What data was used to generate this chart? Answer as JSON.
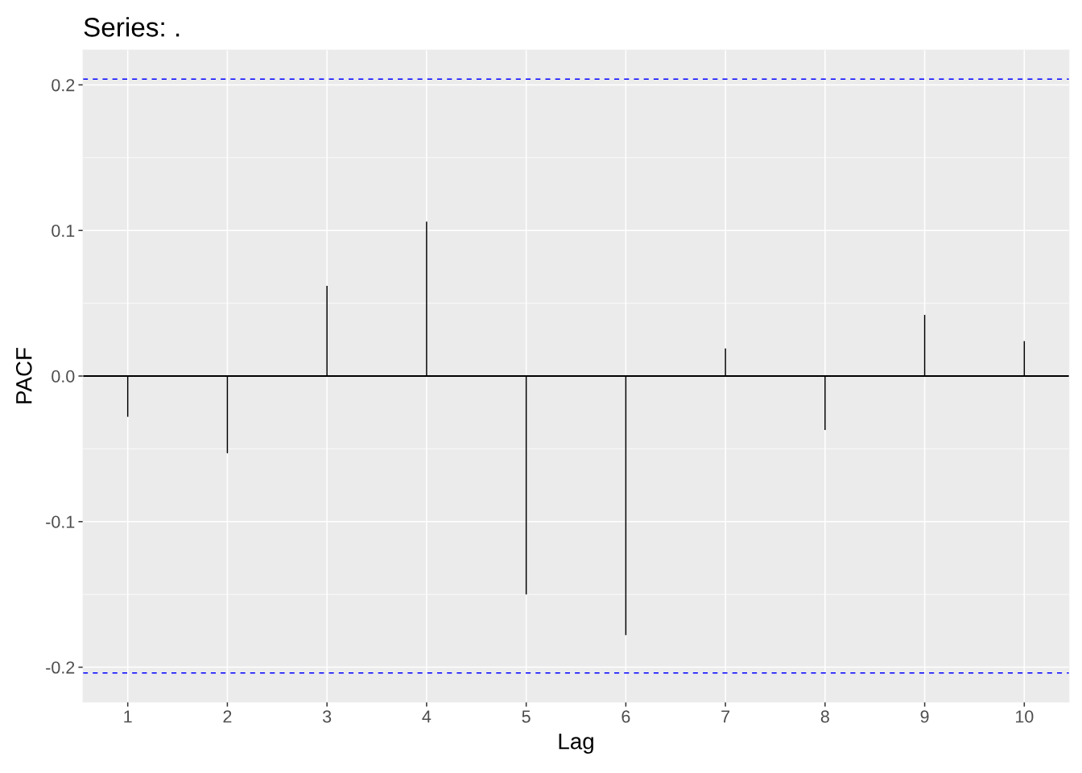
{
  "chart_data": {
    "type": "bar",
    "title": "Series: .",
    "xlabel": "Lag",
    "ylabel": "PACF",
    "x": [
      1,
      2,
      3,
      4,
      5,
      6,
      7,
      8,
      9,
      10
    ],
    "values": [
      -0.028,
      -0.053,
      0.062,
      0.106,
      -0.15,
      -0.178,
      0.019,
      -0.037,
      0.042,
      0.024
    ],
    "color": "#000000",
    "xlim": [
      0.55,
      10.45
    ],
    "xticks": [
      1,
      2,
      3,
      4,
      5,
      6,
      7,
      8,
      9,
      10
    ],
    "ylim": [
      -0.224,
      0.224
    ],
    "yticks": [
      -0.2,
      -0.1,
      {
        "value": 0,
        "label": "0.0"
      },
      0.1,
      0.2
    ],
    "ref_lines": [
      {
        "axis": "y",
        "value": 0,
        "color": "#000000",
        "line_style": "solid"
      },
      {
        "axis": "y",
        "value": 0.204,
        "color": "#0000ff",
        "line_style": "dashed"
      },
      {
        "axis": "y",
        "value": -0.204,
        "color": "#0000ff",
        "line_style": "dashed"
      }
    ],
    "grid": true
  }
}
